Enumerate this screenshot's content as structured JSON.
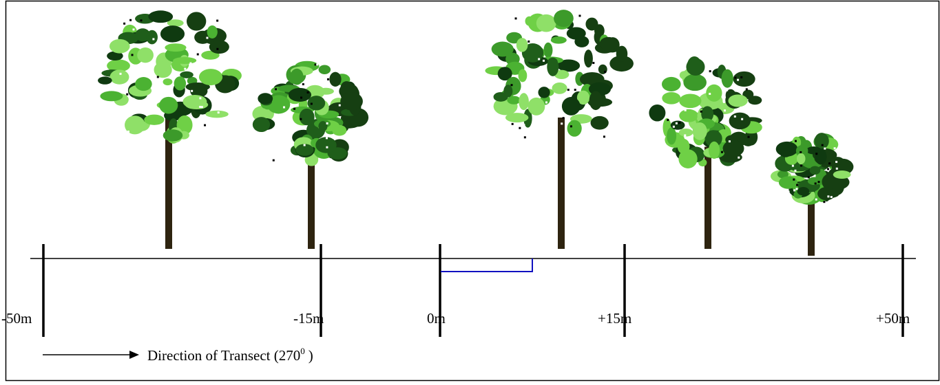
{
  "scale_labels": [
    "-50m",
    "-15m",
    "0m",
    "+15m",
    "+50m"
  ],
  "legend": {
    "text": "Direction of Transect (270",
    "superscript": "0",
    "suffix": ")"
  }
}
